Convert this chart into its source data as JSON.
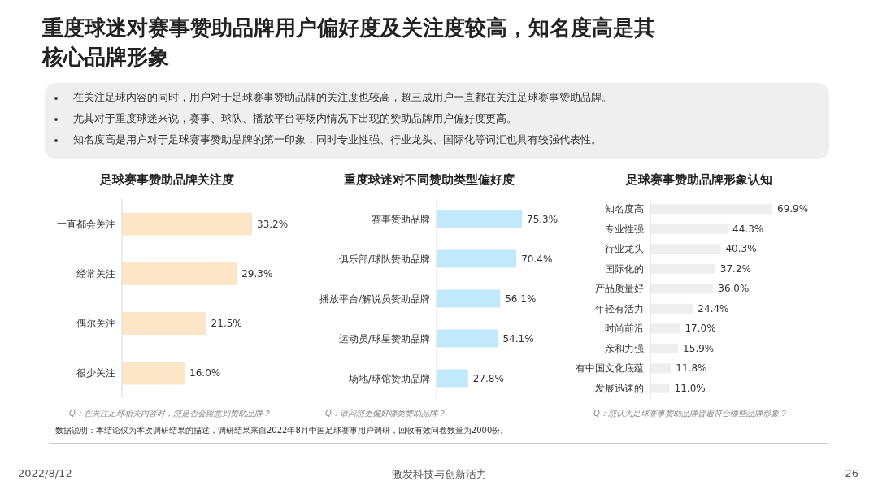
{
  "chart_data": [
    {
      "type": "other",
      "title": "重度球迷对赛事赞助品牌用户偏好度及关注度较高，知名度高是其核心品牌形象",
      "annotations": [
        "在关注足球内容的同时，用户对于足球赛事赞助品牌的关注度也较高，超三成用户一直都在关注足球赛事赞助品牌。",
        "尤其对于重度球迷来说，赛事、球队、播放平台等场内情况下出现的赞助品牌用户偏好度更高。",
        "知名度高是用户对于足球赛事赞助品牌的第一印象，同时专业性强、行业龙头、国际化等词汇也具有较强代表性。",
        "数据说明：本结论仅为本次调研结果的描述，调研结果来自2022年8月中国足球赛事用户调研，回收有效问卷数量为2000份。",
        "2022/8/12",
        "激发科技与创新活力",
        "26"
      ]
    },
    {
      "type": "bar",
      "orientation": "horizontal",
      "title": "足球赛事赞助品牌关注度",
      "categories": [
        "一直都会关注",
        "经常关注",
        "偶尔关注",
        "很少关注"
      ],
      "values": [
        33.2,
        29.3,
        21.5,
        16.0
      ],
      "value_labels": [
        "33.2%",
        "29.3%",
        "21.5%",
        "16.0%"
      ],
      "color": "#fde5c8",
      "annotations": [
        "Q：在关注足球相关内容时，您是否会留意到赞助品牌？"
      ]
    },
    {
      "type": "bar",
      "orientation": "horizontal",
      "title": "重度球迷对不同赞助类型偏好度",
      "categories": [
        "赛事赞助品牌",
        "俱乐部/球队赞助品牌",
        "播放平台/解说员赞助品牌",
        "运动员/球星赞助品牌",
        "场地/球馆赞助品牌"
      ],
      "values": [
        75.3,
        70.4,
        56.1,
        54.1,
        27.8
      ],
      "value_labels": [
        "75.3%",
        "70.4%",
        "56.1%",
        "54.1%",
        "27.8%"
      ],
      "color": "#c2e8fb",
      "annotations": [
        "Q：请问您更偏好哪类赞助品牌？"
      ]
    },
    {
      "type": "bar",
      "orientation": "horizontal",
      "title": "足球赛事赞助品牌形象认知",
      "categories": [
        "知名度高",
        "专业性强",
        "行业龙头",
        "国际化的",
        "产品质量好",
        "年轻有活力",
        "时尚前沿",
        "亲和力强",
        "有中国文化底蕴",
        "发展迅速的"
      ],
      "values": [
        69.9,
        44.3,
        40.3,
        37.2,
        36.0,
        24.4,
        17.0,
        15.9,
        11.8,
        11.0
      ],
      "value_labels": [
        "69.9%",
        "44.3%",
        "40.3%",
        "37.2%",
        "36.0%",
        "24.4%",
        "17.0%",
        "15.9%",
        "11.8%",
        "11.0%"
      ],
      "color": "#eeeeee",
      "annotations": [
        "Q：您认为足球赛事赞助品牌普遍符合哪些品牌形象？"
      ]
    }
  ]
}
